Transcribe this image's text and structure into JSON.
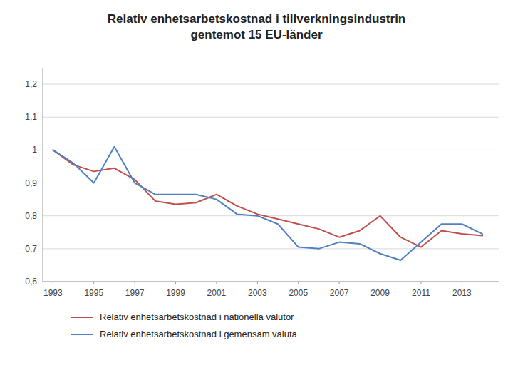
{
  "chart_data": {
    "type": "line",
    "title": "Relativ enhetsarbetskostnad i tillverkningsindustrin\ngentemot 15 EU-länder",
    "x": [
      1993,
      1994,
      1995,
      1996,
      1997,
      1998,
      1999,
      2000,
      2001,
      2002,
      2003,
      2004,
      2005,
      2006,
      2007,
      2008,
      2009,
      2010,
      2011,
      2012,
      2013,
      2014
    ],
    "series": [
      {
        "name": "Relativ enhetsarbetskostnad i nationella valutor",
        "color": "#c0504d",
        "values": [
          1.0,
          0.955,
          0.935,
          0.945,
          0.91,
          0.845,
          0.835,
          0.84,
          0.865,
          0.83,
          0.805,
          0.79,
          0.775,
          0.76,
          0.735,
          0.755,
          0.8,
          0.735,
          0.705,
          0.755,
          0.745,
          0.74
        ]
      },
      {
        "name": "Relativ enhetsarbetskostnad i gemensam valuta",
        "color": "#4f81bd",
        "values": [
          1.0,
          0.96,
          0.9,
          1.01,
          0.9,
          0.865,
          0.865,
          0.865,
          0.85,
          0.805,
          0.8,
          0.775,
          0.705,
          0.7,
          0.72,
          0.715,
          0.685,
          0.665,
          0.72,
          0.775,
          0.775,
          0.745
        ]
      }
    ],
    "xlim": [
      1992.5,
      2014.8
    ],
    "xticks": [
      1993,
      1995,
      1997,
      1999,
      2001,
      2003,
      2005,
      2007,
      2009,
      2011,
      2013
    ],
    "ylim": [
      0.6,
      1.25
    ],
    "yticks": [
      {
        "value": 0.6,
        "label": "0,6"
      },
      {
        "value": 0.7,
        "label": "0,7"
      },
      {
        "value": 0.8,
        "label": "0,8"
      },
      {
        "value": 0.9,
        "label": "0,9"
      },
      1,
      {
        "value": 1.1,
        "label": "1,1"
      },
      {
        "value": 1.2,
        "label": "1,2"
      }
    ],
    "grid": true,
    "legend": "bottom"
  }
}
